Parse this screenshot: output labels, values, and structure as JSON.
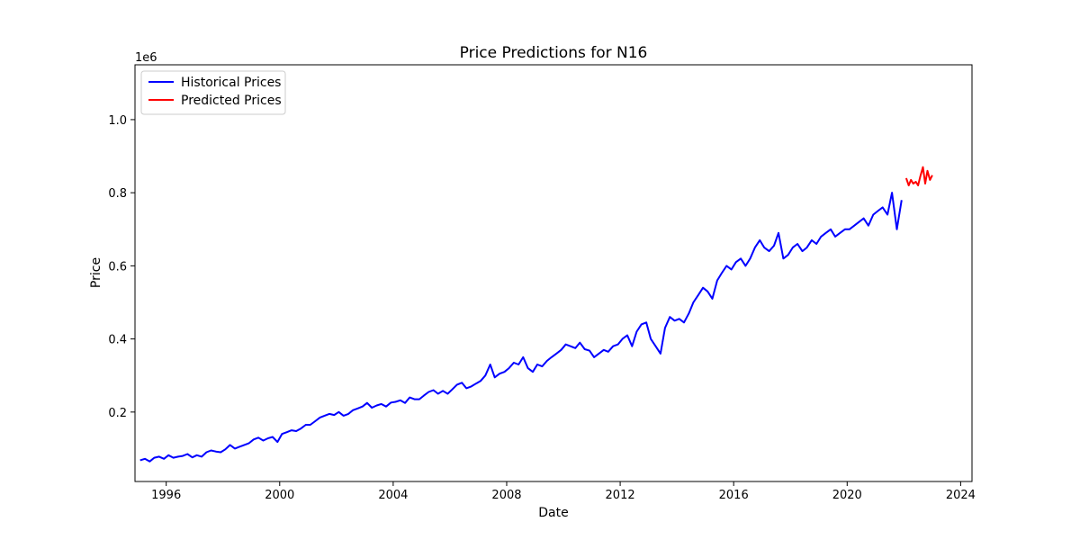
{
  "chart_data": {
    "type": "line",
    "title": "Price Predictions for N16",
    "xlabel": "Date",
    "ylabel": "Price",
    "y_multiplier_label": "1e6",
    "xlim": [
      1994.9,
      2024.4
    ],
    "ylim": [
      10000,
      1150000
    ],
    "x_ticks": [
      1996,
      2000,
      2004,
      2008,
      2012,
      2016,
      2020,
      2024
    ],
    "y_ticks": [
      0.2,
      0.4,
      0.6,
      0.8,
      1.0
    ],
    "y_tick_labels": [
      "0.2",
      "0.4",
      "0.6",
      "0.8",
      "1.0"
    ],
    "grid": false,
    "legend_position": "top-left",
    "series": [
      {
        "name": "Historical Prices",
        "color": "#0000ff",
        "x": [
          1995.08,
          1995.25,
          1995.42,
          1995.58,
          1995.75,
          1995.92,
          1996.08,
          1996.25,
          1996.42,
          1996.58,
          1996.75,
          1996.92,
          1997.08,
          1997.25,
          1997.42,
          1997.58,
          1997.75,
          1997.92,
          1998.08,
          1998.25,
          1998.42,
          1998.58,
          1998.75,
          1998.92,
          1999.08,
          1999.25,
          1999.42,
          1999.58,
          1999.75,
          1999.92,
          2000.08,
          2000.25,
          2000.42,
          2000.58,
          2000.75,
          2000.92,
          2001.08,
          2001.25,
          2001.42,
          2001.58,
          2001.75,
          2001.92,
          2002.08,
          2002.25,
          2002.42,
          2002.58,
          2002.75,
          2002.92,
          2003.08,
          2003.25,
          2003.42,
          2003.58,
          2003.75,
          2003.92,
          2004.08,
          2004.25,
          2004.42,
          2004.58,
          2004.75,
          2004.92,
          2005.08,
          2005.25,
          2005.42,
          2005.58,
          2005.75,
          2005.92,
          2006.08,
          2006.25,
          2006.42,
          2006.58,
          2006.75,
          2006.92,
          2007.08,
          2007.25,
          2007.42,
          2007.58,
          2007.75,
          2007.92,
          2008.08,
          2008.25,
          2008.42,
          2008.58,
          2008.75,
          2008.92,
          2009.08,
          2009.25,
          2009.42,
          2009.58,
          2009.75,
          2009.92,
          2010.08,
          2010.25,
          2010.42,
          2010.58,
          2010.75,
          2010.92,
          2011.08,
          2011.25,
          2011.42,
          2011.58,
          2011.75,
          2011.92,
          2012.08,
          2012.25,
          2012.42,
          2012.58,
          2012.75,
          2012.92,
          2013.08,
          2013.25,
          2013.42,
          2013.58,
          2013.75,
          2013.92,
          2014.08,
          2014.25,
          2014.42,
          2014.58,
          2014.75,
          2014.92,
          2015.08,
          2015.25,
          2015.42,
          2015.58,
          2015.75,
          2015.92,
          2016.08,
          2016.25,
          2016.42,
          2016.58,
          2016.75,
          2016.92,
          2017.08,
          2017.25,
          2017.42,
          2017.58,
          2017.75,
          2017.92,
          2018.08,
          2018.25,
          2018.42,
          2018.58,
          2018.75,
          2018.92,
          2019.08,
          2019.25,
          2019.42,
          2019.58,
          2019.75,
          2019.92,
          2020.08,
          2020.25,
          2020.42,
          2020.58,
          2020.75,
          2020.92,
          2021.08,
          2021.25,
          2021.42,
          2021.58,
          2021.75,
          2021.92
        ],
        "values": [
          68000,
          72000,
          65000,
          75000,
          78000,
          72000,
          82000,
          75000,
          78000,
          80000,
          85000,
          76000,
          82000,
          78000,
          90000,
          95000,
          92000,
          90000,
          98000,
          110000,
          100000,
          105000,
          110000,
          115000,
          125000,
          130000,
          122000,
          128000,
          132000,
          118000,
          140000,
          145000,
          150000,
          148000,
          155000,
          165000,
          165000,
          175000,
          185000,
          190000,
          195000,
          192000,
          200000,
          190000,
          195000,
          205000,
          210000,
          215000,
          225000,
          212000,
          218000,
          222000,
          215000,
          226000,
          228000,
          232000,
          225000,
          240000,
          235000,
          235000,
          245000,
          255000,
          260000,
          250000,
          258000,
          250000,
          262000,
          275000,
          280000,
          265000,
          270000,
          278000,
          285000,
          300000,
          330000,
          295000,
          305000,
          310000,
          320000,
          335000,
          330000,
          350000,
          320000,
          310000,
          330000,
          325000,
          340000,
          350000,
          360000,
          370000,
          385000,
          380000,
          375000,
          390000,
          372000,
          368000,
          350000,
          360000,
          370000,
          365000,
          380000,
          385000,
          400000,
          410000,
          380000,
          420000,
          440000,
          445000,
          400000,
          380000,
          360000,
          430000,
          460000,
          450000,
          455000,
          445000,
          470000,
          500000,
          520000,
          540000,
          530000,
          510000,
          560000,
          580000,
          600000,
          590000,
          610000,
          620000,
          600000,
          620000,
          650000,
          670000,
          650000,
          640000,
          655000,
          690000,
          620000,
          630000,
          650000,
          660000,
          640000,
          650000,
          670000,
          660000,
          680000,
          690000,
          700000,
          680000,
          690000,
          700000,
          700000,
          710000,
          720000,
          730000,
          710000,
          740000,
          750000,
          760000,
          740000,
          800000,
          700000,
          780000
        ]
      },
      {
        "name": "Predicted Prices",
        "color": "#ff0000",
        "x": [
          2022.08,
          2022.17,
          2022.25,
          2022.33,
          2022.42,
          2022.5,
          2022.58,
          2022.67,
          2022.75,
          2022.83,
          2022.92,
          2023.0
        ],
        "values": [
          840000,
          820000,
          835000,
          825000,
          830000,
          820000,
          845000,
          870000,
          825000,
          860000,
          835000,
          848000
        ]
      }
    ]
  }
}
